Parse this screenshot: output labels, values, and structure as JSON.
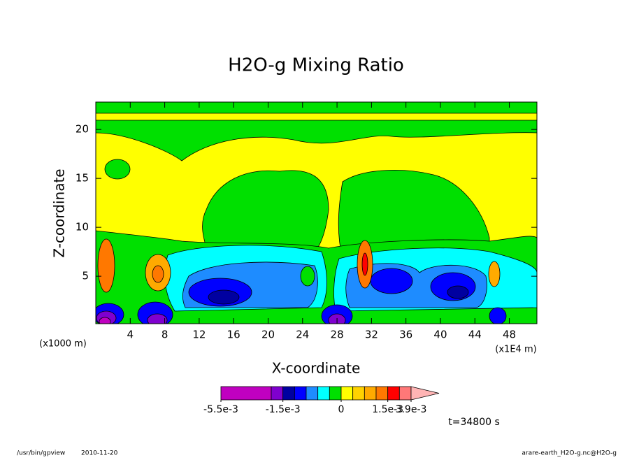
{
  "chart_data": {
    "type": "contour",
    "title": "H2O-g Mixing Ratio",
    "x_label": "X-coordinate",
    "y_label": "Z-coordinate",
    "x_unit_label": "(x1E4 m)",
    "y_unit_label": "(x1000 m)",
    "xlim": [
      0,
      51.2
    ],
    "ylim": [
      0.15,
      22.8
    ],
    "xticks": [
      4,
      8,
      12,
      16,
      20,
      24,
      28,
      32,
      36,
      40,
      44,
      48
    ],
    "yticks": [
      5,
      10,
      15,
      20
    ],
    "colorbar_bounds": [
      -0.0055,
      -0.0025,
      -0.0015,
      -0.0012,
      -0.0009,
      -0.0006,
      -0.0003,
      0,
      0.0003,
      0.0006,
      0.0009,
      0.0015,
      0.0027,
      0.0039
    ],
    "colors": [
      "#c000c0",
      "#7f00cf",
      "#0000a0",
      "#0000ff",
      "#1e8cff",
      "#00ffff",
      "#00e000",
      "#ffff00",
      "#ffd200",
      "#ffaa00",
      "#ff7800",
      "#ff0000",
      "#ff7878"
    ],
    "over_color": "#ffb4b4",
    "colorbar_ticks": [
      {
        "value": -0.0055,
        "label": "-5.5e-3"
      },
      {
        "value": -0.0015,
        "label": "-1.5e-3"
      },
      {
        "value": 0,
        "label": "0"
      },
      {
        "value": 0.0015,
        "label": "1.5e-3"
      },
      {
        "value": 0.0039,
        "label": "3.9e-3"
      }
    ],
    "time_label": "t=34800 s",
    "program": "/usr/bin/gpview",
    "date": "2010-11-20",
    "source": "arare-earth_H2O-g.nc@H2O-g"
  }
}
